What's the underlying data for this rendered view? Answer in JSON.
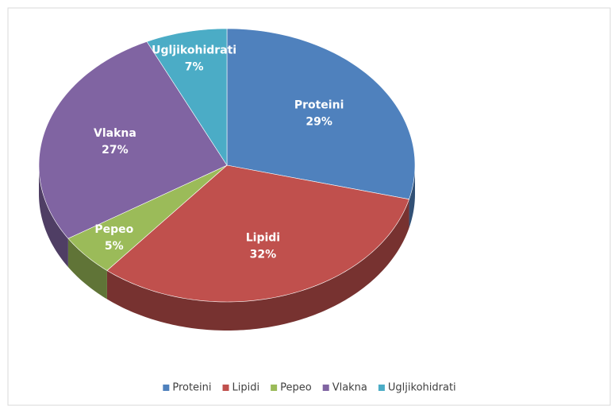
{
  "chart_data": {
    "type": "pie3d",
    "categories": [
      "Proteini",
      "Lipidi",
      "Pepeo",
      "Vlakna",
      "Ugljikohidrati"
    ],
    "values": [
      29,
      32,
      5,
      27,
      7
    ],
    "value_labels": [
      "29%",
      "32%",
      "5%",
      "27%",
      "7%"
    ],
    "colors": [
      "#4f81bd",
      "#c0504d",
      "#9bbb59",
      "#8064a2",
      "#4bacc6"
    ],
    "legend": "bottom"
  }
}
